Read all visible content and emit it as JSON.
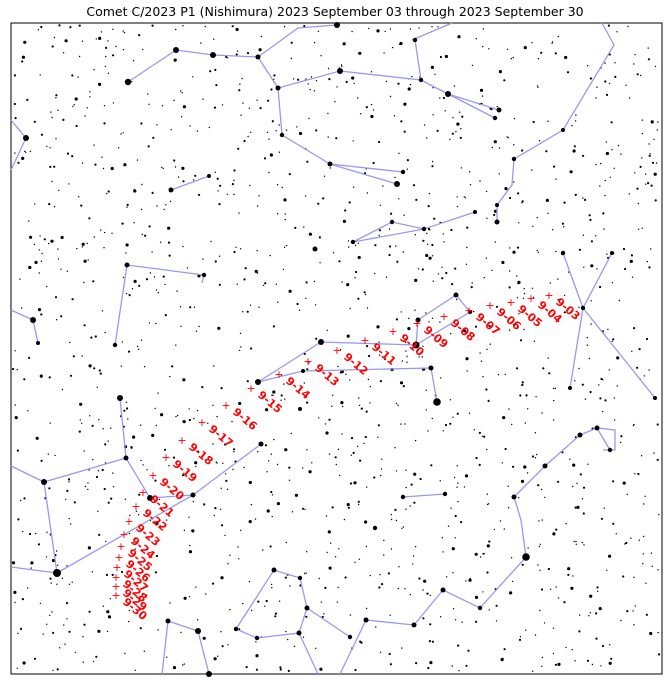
{
  "chart_data": {
    "type": "scatter",
    "title": "Comet C/2023 P1 (Nishimura) 2023 September 03 through 2023 September 30",
    "xlabel": "",
    "ylabel": "",
    "grid": false,
    "colors": {
      "comet": "#ff0000",
      "constellation_lines": "#9999ee",
      "stars": "#000000"
    },
    "comet_path": [
      {
        "label": "9-03"
      },
      {
        "label": "9-04"
      },
      {
        "label": "9-05"
      },
      {
        "label": "9-06"
      },
      {
        "label": "9-07"
      },
      {
        "label": "9-08"
      },
      {
        "label": "9-09"
      },
      {
        "label": "9-10"
      },
      {
        "label": "9-11"
      },
      {
        "label": "9-12"
      },
      {
        "label": "9-13"
      },
      {
        "label": "9-14"
      },
      {
        "label": "9-15"
      },
      {
        "label": "9-16"
      },
      {
        "label": "9-17"
      },
      {
        "label": "9-18"
      },
      {
        "label": "9-19"
      },
      {
        "label": "9-20"
      },
      {
        "label": "9-21"
      },
      {
        "label": "9-22"
      },
      {
        "label": "9-23"
      },
      {
        "label": "9-24"
      },
      {
        "label": "9-25"
      },
      {
        "label": "9-26"
      },
      {
        "label": "9-27"
      },
      {
        "label": "9-28"
      },
      {
        "label": "9-29"
      },
      {
        "label": "9-30"
      }
    ]
  }
}
